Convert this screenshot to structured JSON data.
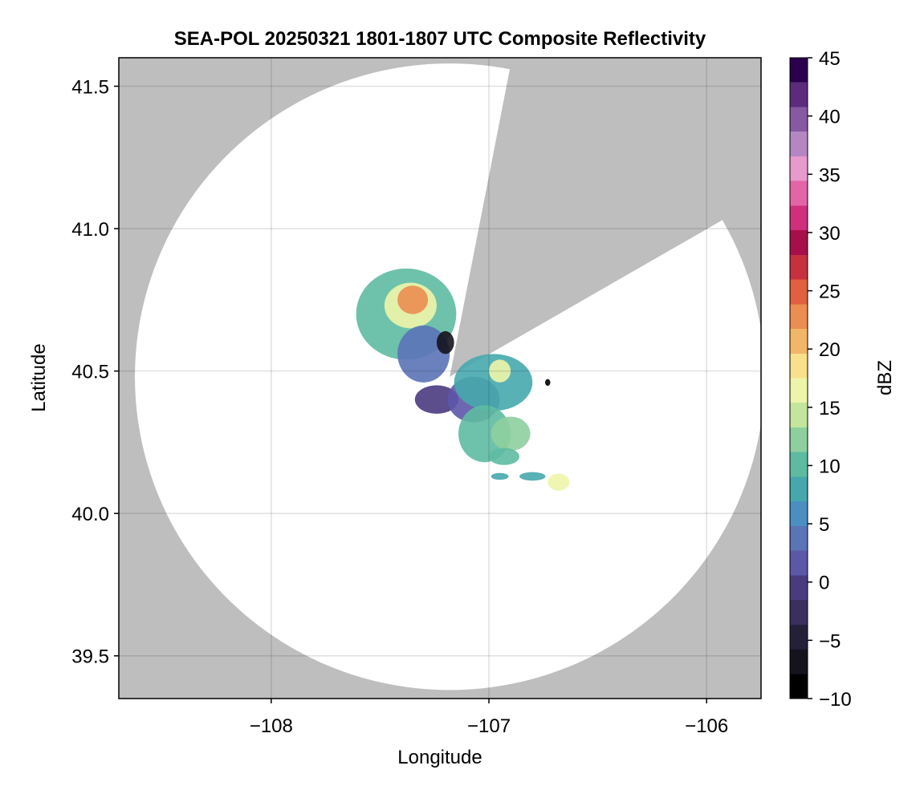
{
  "chart_data": {
    "type": "heatmap",
    "title": "SEA-POL 20250321 1801-1807 UTC Composite Reflectivity",
    "xlabel": "Longitude",
    "ylabel": "Latitude",
    "xlim": [
      -108.7,
      -105.75
    ],
    "ylim": [
      39.35,
      41.6
    ],
    "xticks": [
      -108,
      -107,
      -106
    ],
    "yticks": [
      39.5,
      40.0,
      40.5,
      41.0,
      41.5
    ],
    "xtick_labels": [
      "−108",
      "−107",
      "−106"
    ],
    "ytick_labels": [
      "39.5",
      "40.0",
      "40.5",
      "41.0",
      "41.5"
    ],
    "grid": true,
    "background_color": "#bebebe",
    "radar": {
      "center_lon": -107.18,
      "center_lat": 40.48,
      "range_deg_lat": 1.1,
      "blocked_sectors_deg_from_north": [
        [
          11,
          60
        ]
      ]
    },
    "colorbar": {
      "label": "dBZ",
      "min": -10,
      "max": 45,
      "ticks": [
        -10,
        -5,
        0,
        5,
        10,
        15,
        20,
        25,
        30,
        35,
        40,
        45
      ],
      "tick_labels": [
        "−10",
        "−5",
        "0",
        "5",
        "10",
        "15",
        "20",
        "25",
        "30",
        "35",
        "40",
        "45"
      ],
      "colors": [
        "#000000",
        "#15131d",
        "#25203a",
        "#3a2f5e",
        "#4a3a80",
        "#5d57a8",
        "#5b73b7",
        "#4b8fc0",
        "#46a8ad",
        "#5ebba2",
        "#8ecf9e",
        "#c3e69c",
        "#eef5a9",
        "#f8e08c",
        "#f2b66a",
        "#ec8d51",
        "#e0603f",
        "#c9303f",
        "#a70f4a",
        "#cf2f7c",
        "#e265a8",
        "#e79acb",
        "#b487c3",
        "#8659a3",
        "#5d2b7d",
        "#2b004f"
      ]
    },
    "echoes": [
      {
        "lon": -107.38,
        "lat": 40.7,
        "rx": 0.23,
        "ry": 0.16,
        "dbz": 9
      },
      {
        "lon": -107.36,
        "lat": 40.73,
        "rx": 0.12,
        "ry": 0.08,
        "dbz": 16
      },
      {
        "lon": -107.35,
        "lat": 40.75,
        "rx": 0.07,
        "ry": 0.05,
        "dbz": 22
      },
      {
        "lon": -107.3,
        "lat": 40.56,
        "rx": 0.12,
        "ry": 0.1,
        "dbz": 3
      },
      {
        "lon": -107.2,
        "lat": 40.6,
        "rx": 0.04,
        "ry": 0.04,
        "dbz": -8
      },
      {
        "lon": -107.24,
        "lat": 40.4,
        "rx": 0.1,
        "ry": 0.05,
        "dbz": -2
      },
      {
        "lon": -107.07,
        "lat": 40.4,
        "rx": 0.12,
        "ry": 0.08,
        "dbz": 0
      },
      {
        "lon": -106.98,
        "lat": 40.46,
        "rx": 0.18,
        "ry": 0.1,
        "dbz": 8
      },
      {
        "lon": -106.95,
        "lat": 40.5,
        "rx": 0.05,
        "ry": 0.04,
        "dbz": 17
      },
      {
        "lon": -107.02,
        "lat": 40.28,
        "rx": 0.12,
        "ry": 0.1,
        "dbz": 10
      },
      {
        "lon": -106.9,
        "lat": 40.28,
        "rx": 0.09,
        "ry": 0.06,
        "dbz": 12
      },
      {
        "lon": -106.93,
        "lat": 40.2,
        "rx": 0.07,
        "ry": 0.03,
        "dbz": 10
      },
      {
        "lon": -106.68,
        "lat": 40.11,
        "rx": 0.05,
        "ry": 0.03,
        "dbz": 16
      },
      {
        "lon": -106.8,
        "lat": 40.13,
        "rx": 0.06,
        "ry": 0.015,
        "dbz": 8
      },
      {
        "lon": -106.95,
        "lat": 40.13,
        "rx": 0.04,
        "ry": 0.012,
        "dbz": 7
      },
      {
        "lon": -106.73,
        "lat": 40.46,
        "rx": 0.012,
        "ry": 0.012,
        "dbz": -10
      }
    ]
  }
}
